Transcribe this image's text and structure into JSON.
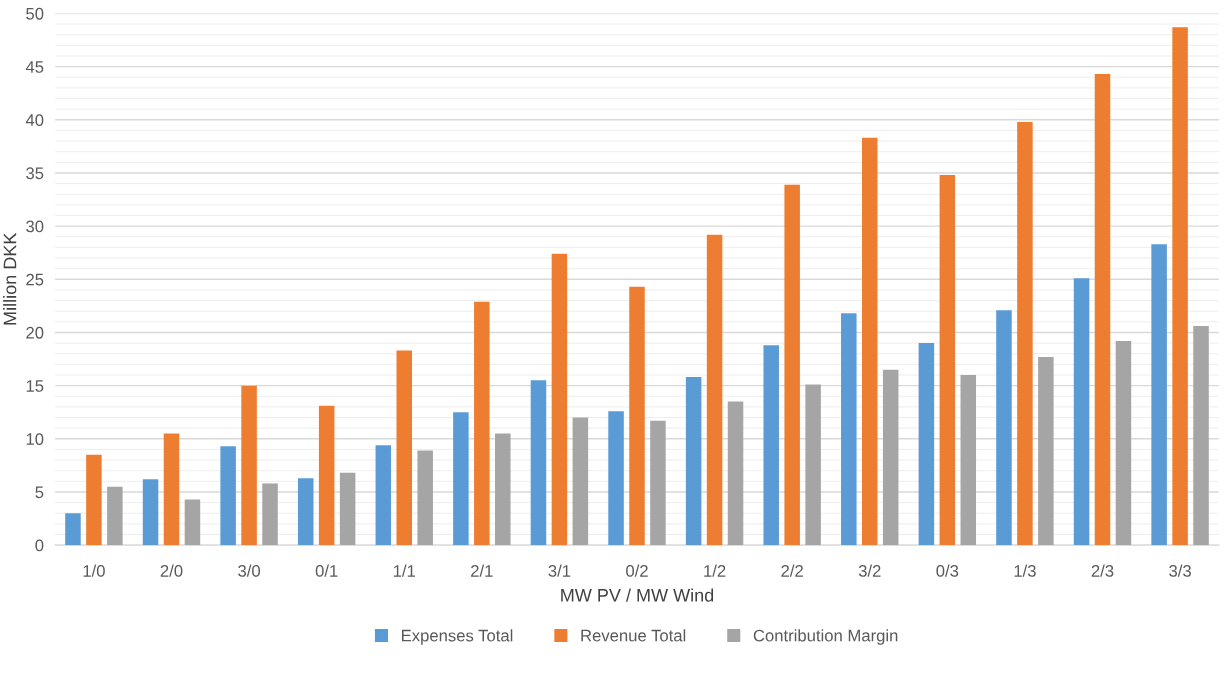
{
  "chart_data": {
    "type": "bar",
    "xlabel": "MW PV / MW Wind",
    "ylabel": "Million DKK",
    "categories": [
      "1/0",
      "2/0",
      "3/0",
      "0/1",
      "1/1",
      "2/1",
      "3/1",
      "0/2",
      "1/2",
      "2/2",
      "3/2",
      "0/3",
      "1/3",
      "2/3",
      "3/3"
    ],
    "series": [
      {
        "name": "Expenses Total",
        "color": "#5b9bd5",
        "values": [
          3.0,
          6.2,
          9.3,
          6.3,
          9.4,
          12.5,
          15.5,
          12.6,
          15.8,
          18.8,
          21.8,
          19.0,
          22.1,
          25.1,
          28.3
        ]
      },
      {
        "name": "Revenue Total",
        "color": "#ed7d31",
        "values": [
          8.5,
          10.5,
          15.0,
          13.1,
          18.3,
          22.9,
          27.4,
          24.3,
          29.2,
          33.9,
          38.3,
          34.8,
          39.8,
          44.3,
          48.7
        ]
      },
      {
        "name": "Contribution Margin",
        "color": "#a5a5a5",
        "values": [
          5.5,
          4.3,
          5.8,
          6.8,
          8.9,
          10.5,
          12.0,
          11.7,
          13.5,
          15.1,
          16.5,
          16.0,
          17.7,
          19.2,
          20.6
        ]
      }
    ],
    "ylim": [
      0,
      50
    ],
    "yticks": [
      0,
      5,
      10,
      15,
      20,
      25,
      30,
      35,
      40,
      45,
      50
    ],
    "grid": "y",
    "legend": "bottom"
  }
}
